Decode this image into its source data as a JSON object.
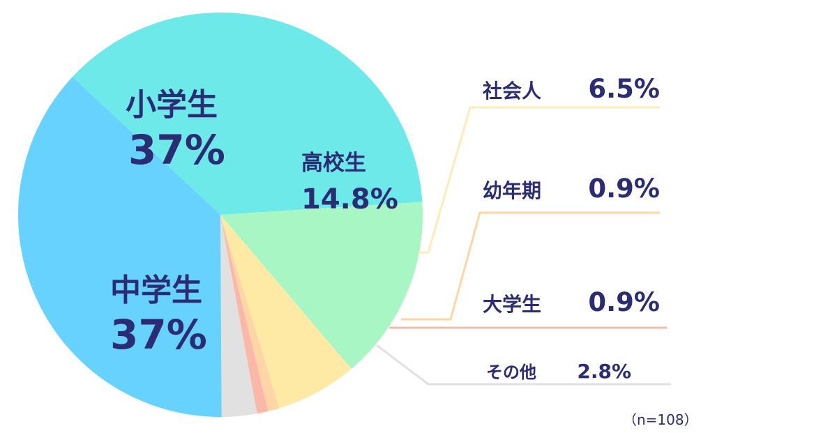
{
  "chart_data": {
    "type": "pie",
    "slices": [
      {
        "label": "小学生",
        "value": 37,
        "value_label": "37%",
        "color": "#6ee9e9"
      },
      {
        "label": "高校生",
        "value": 14.8,
        "value_label": "14.8%",
        "color": "#a7f6c3"
      },
      {
        "label": "社会人",
        "value": 6.5,
        "value_label": "6.5%",
        "color": "#feeaa4"
      },
      {
        "label": "幼年期",
        "value": 0.9,
        "value_label": "0.9%",
        "color": "#fdd5a6"
      },
      {
        "label": "大学生",
        "value": 0.9,
        "value_label": "0.9%",
        "color": "#fbb8a8"
      },
      {
        "label": "その他",
        "value": 2.8,
        "value_label": "2.8%",
        "color": "#e1e1e1"
      },
      {
        "label": "中学生",
        "value": 37,
        "value_label": "37%",
        "color": "#66d2fd"
      }
    ],
    "note": "（n=108）",
    "text_color": "#2b2c73"
  }
}
